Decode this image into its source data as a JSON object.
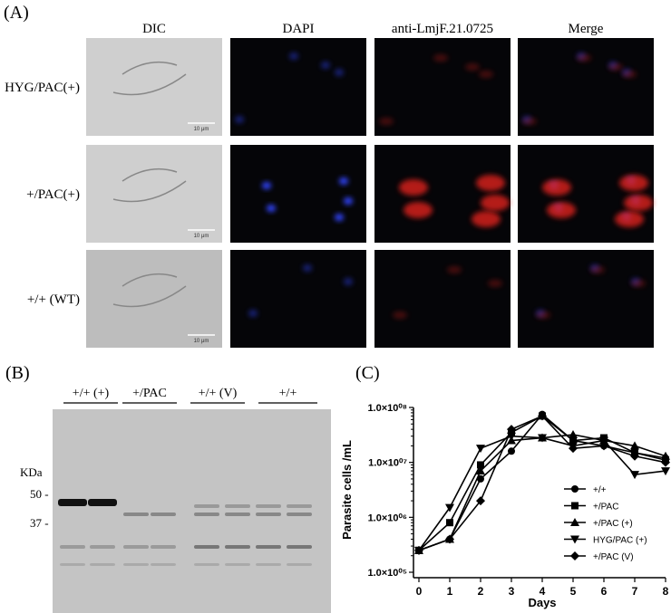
{
  "panel_a": {
    "label": "(A)",
    "columns": [
      "DIC",
      "DAPI",
      "anti-LmjF.21.0725",
      "Merge"
    ],
    "rows": [
      "HYG/PAC(+)",
      "+/PAC(+)",
      "+/+ (WT)"
    ],
    "scale_bar": "10 μm"
  },
  "panel_b": {
    "label": "(B)",
    "lanes": [
      "+/+ (+)",
      "+/PAC",
      "+/+ (V)",
      "+/+"
    ],
    "unit": "KDa",
    "markers": [
      "50 -",
      "37 -"
    ]
  },
  "panel_c": {
    "label": "(C)"
  },
  "chart_data": {
    "type": "line",
    "x_label": "Days",
    "y_label": "Parasite cells /mL",
    "x": [
      0,
      1,
      2,
      3,
      4,
      5,
      6,
      7,
      8
    ],
    "xlim": [
      0,
      8
    ],
    "xticks": [
      0,
      1,
      2,
      3,
      4,
      5,
      6,
      7,
      8
    ],
    "ylim": [
      100000,
      100000000
    ],
    "y_scale": "log",
    "yticks": [
      {
        "value": 100000,
        "label": "1.0×10⁰⁵"
      },
      {
        "value": 1000000,
        "label": "1.0×10⁰⁶"
      },
      {
        "value": 10000000,
        "label": "1.0×10⁰⁷"
      },
      {
        "value": 100000000,
        "label": "1.0×10⁰⁸"
      }
    ],
    "series": [
      {
        "name": "+/+",
        "color": "#000000",
        "marker": "circle",
        "values": [
          250000,
          400000,
          5000000,
          16000000,
          75000000,
          25000000,
          20000000,
          15000000,
          12000000
        ]
      },
      {
        "name": "+/PAC",
        "color": "#000000",
        "marker": "square",
        "values": [
          250000,
          800000,
          9000000,
          35000000,
          70000000,
          25000000,
          28000000,
          15000000,
          11000000
        ]
      },
      {
        "name": "+/PAC (+)",
        "color": "#000000",
        "marker": "triangle",
        "values": [
          250000,
          400000,
          7000000,
          25000000,
          28000000,
          32000000,
          25000000,
          20000000,
          13000000
        ]
      },
      {
        "name": "HYG/PAC (+)",
        "color": "#000000",
        "marker": "triangle-down",
        "values": [
          250000,
          1500000,
          18000000,
          30000000,
          28000000,
          20000000,
          25000000,
          6000000,
          7000000
        ]
      },
      {
        "name": "+/PAC (V)",
        "color": "#000000",
        "marker": "diamond",
        "values": [
          250000,
          400000,
          2000000,
          40000000,
          70000000,
          18000000,
          20000000,
          13000000,
          10000000
        ]
      }
    ],
    "legend": "lower-right"
  }
}
